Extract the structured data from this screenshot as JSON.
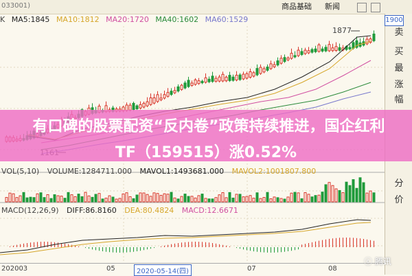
{
  "header": {
    "code": "033001)",
    "tabs": [
      "商品基础",
      "新闻",
      "ㅇ",
      "ㅇ"
    ],
    "fuquan": "K"
  },
  "ma_legend": [
    {
      "label": "MA5:1845",
      "color": "#222222"
    },
    {
      "label": "MA10:1812",
      "color": "#d6a62a"
    },
    {
      "label": "MA20:1720",
      "color": "#d04ea0"
    },
    {
      "label": "MA40:1602",
      "color": "#2a8a3a"
    },
    {
      "label": "MA60:1529",
      "color": "#7777cc"
    }
  ],
  "price_labels": {
    "high": "1877",
    "low": "1161"
  },
  "current_price": "1900",
  "vol_legend": [
    {
      "label": "VOL(5,10)",
      "color": "#444444"
    },
    {
      "label": "VOLUME:1284711.000",
      "color": "#444444"
    },
    {
      "label": "MAVOL1:1493681.000",
      "color": "#222222"
    },
    {
      "label": "MAVOL2:1001807.800",
      "color": "#d6a62a"
    }
  ],
  "macd_legend": [
    {
      "label": "MACD(12,26,9)",
      "color": "#444444"
    },
    {
      "label": "DIFF:86.8160",
      "color": "#222222"
    },
    {
      "label": "DEA:80.4824",
      "color": "#d6a62a"
    },
    {
      "label": "MACD:12.6671",
      "color": "#d04ea0"
    }
  ],
  "x_axis": {
    "labels": [
      {
        "text": "202003",
        "pos": "start"
      },
      {
        "text": "05",
        "pos": "mid1"
      },
      {
        "text": "07",
        "pos": "mid2"
      },
      {
        "text": "08",
        "pos": "mid3"
      }
    ],
    "cursor_date": "2020-05-14(四)"
  },
  "right_panel": {
    "items": [
      "卖",
      "买",
      "最",
      "涨",
      "幅",
      "分",
      "价"
    ]
  },
  "overlay": {
    "line1": "有口碑的股票配资“反内卷”政策持续推进，国企红利",
    "line2": "TF（159515）涨0.52%"
  },
  "watermark": "ⓒ 腾讯"
}
